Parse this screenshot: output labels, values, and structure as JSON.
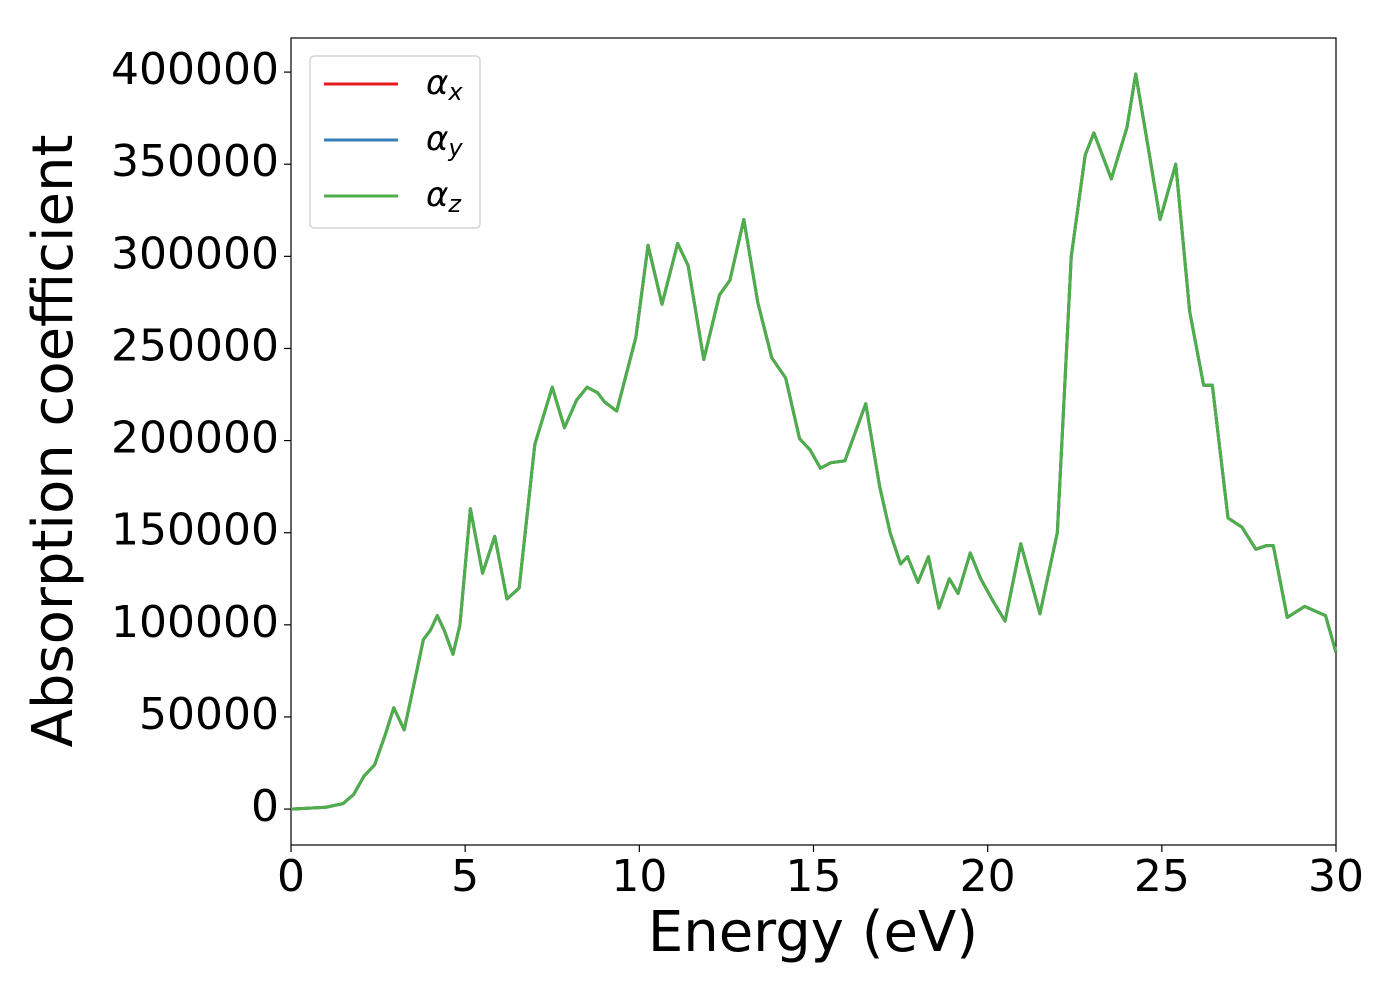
{
  "chart_data": {
    "type": "line",
    "xlabel": "Energy (eV)",
    "ylabel": "Absorption coefficient",
    "x": [
      0,
      1.0,
      1.5,
      1.8,
      2.1,
      2.4,
      2.7,
      2.95,
      3.25,
      3.5,
      3.8,
      4.0,
      4.2,
      4.4,
      4.65,
      4.85,
      5.15,
      5.5,
      5.85,
      6.2,
      6.55,
      7.0,
      7.5,
      7.85,
      8.2,
      8.5,
      8.8,
      9.0,
      9.35,
      9.9,
      10.25,
      10.65,
      11.1,
      11.4,
      11.85,
      12.3,
      12.6,
      13.0,
      13.4,
      13.8,
      14.2,
      14.6,
      14.9,
      15.2,
      15.5,
      15.9,
      16.5,
      16.9,
      17.2,
      17.5,
      17.7,
      18.0,
      18.3,
      18.6,
      18.9,
      19.15,
      19.5,
      19.8,
      20.15,
      20.5,
      20.95,
      21.5,
      22.0,
      22.4,
      22.8,
      23.05,
      23.55,
      24.0,
      24.25,
      24.6,
      24.95,
      25.4,
      25.8,
      26.2,
      26.45,
      26.9,
      27.3,
      27.7,
      28.0,
      28.2,
      28.6,
      29.1,
      29.7,
      30.0
    ],
    "series": [
      {
        "name": "αx",
        "color": "#e41a1c",
        "values": [
          0,
          1000,
          3000,
          8000,
          18000,
          24000,
          40000,
          55000,
          43000,
          65000,
          92000,
          97000,
          105000,
          97000,
          84000,
          100000,
          163000,
          128000,
          148000,
          114000,
          120000,
          198000,
          229000,
          207000,
          222000,
          229000,
          226000,
          221000,
          216000,
          256000,
          306000,
          274000,
          307000,
          295000,
          244000,
          279000,
          287000,
          320000,
          275000,
          245000,
          234000,
          201000,
          195000,
          185000,
          188000,
          189000,
          220000,
          175000,
          150000,
          133000,
          137000,
          123000,
          137000,
          109000,
          125000,
          117000,
          139000,
          125000,
          113000,
          102000,
          144000,
          106000,
          150000,
          300000,
          355000,
          367000,
          342000,
          370000,
          399000,
          360000,
          320000,
          350000,
          270000,
          230000,
          230000,
          158000,
          153000,
          141000,
          143000,
          143000,
          104000,
          110000,
          105000,
          85000
        ]
      },
      {
        "name": "αy",
        "color": "#377eb8",
        "values": [
          0,
          1000,
          3000,
          8000,
          18000,
          24000,
          40000,
          55000,
          43000,
          65000,
          92000,
          97000,
          105000,
          97000,
          84000,
          100000,
          163000,
          128000,
          148000,
          114000,
          120000,
          198000,
          229000,
          207000,
          222000,
          229000,
          226000,
          221000,
          216000,
          256000,
          306000,
          274000,
          307000,
          295000,
          244000,
          279000,
          287000,
          320000,
          275000,
          245000,
          234000,
          201000,
          195000,
          185000,
          188000,
          189000,
          220000,
          175000,
          150000,
          133000,
          137000,
          123000,
          137000,
          109000,
          125000,
          117000,
          139000,
          125000,
          113000,
          102000,
          144000,
          106000,
          150000,
          300000,
          355000,
          367000,
          342000,
          370000,
          399000,
          360000,
          320000,
          350000,
          270000,
          230000,
          230000,
          158000,
          153000,
          141000,
          143000,
          143000,
          104000,
          110000,
          105000,
          85000
        ]
      },
      {
        "name": "αz",
        "color": "#4daf4a",
        "values": [
          0,
          1000,
          3000,
          8000,
          18000,
          24000,
          40000,
          55000,
          43000,
          65000,
          92000,
          97000,
          105000,
          97000,
          84000,
          100000,
          163000,
          128000,
          148000,
          114000,
          120000,
          198000,
          229000,
          207000,
          222000,
          229000,
          226000,
          221000,
          216000,
          256000,
          306000,
          274000,
          307000,
          295000,
          244000,
          279000,
          287000,
          320000,
          275000,
          245000,
          234000,
          201000,
          195000,
          185000,
          188000,
          189000,
          220000,
          175000,
          150000,
          133000,
          137000,
          123000,
          137000,
          109000,
          125000,
          117000,
          139000,
          125000,
          113000,
          102000,
          144000,
          106000,
          150000,
          300000,
          355000,
          367000,
          342000,
          370000,
          399000,
          360000,
          320000,
          350000,
          270000,
          230000,
          230000,
          158000,
          153000,
          141000,
          143000,
          143000,
          104000,
          110000,
          105000,
          85000
        ]
      }
    ],
    "xlim": [
      0,
      30
    ],
    "xticks": [
      0,
      5,
      10,
      15,
      20,
      25,
      30
    ],
    "ylim": [
      -19500,
      418500
    ],
    "yticks": [
      0,
      50000,
      100000,
      150000,
      200000,
      250000,
      300000,
      350000,
      400000
    ],
    "legend": "upper left",
    "grid": false
  }
}
